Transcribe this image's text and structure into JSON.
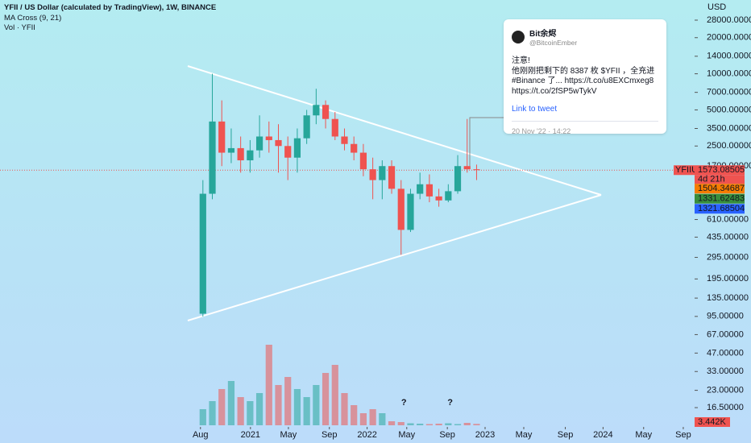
{
  "chart_data": {
    "type": "candlestick",
    "title": "YFII / US Dollar (calculated by TradingView), 1W, BINANCE",
    "indicators": [
      "MA Cross (9, 21)",
      "Vol · YFII"
    ],
    "y_axis_label": "USD",
    "symbol": "YFIIUSD",
    "countdown": "4d 21h",
    "log_scale": true,
    "up_color": "#26a69a",
    "down_color": "#ef5350",
    "categories": [
      null,
      null,
      null,
      null,
      null,
      null,
      null,
      null,
      null,
      null,
      null,
      null,
      null,
      null,
      null,
      null,
      null,
      null,
      null,
      null,
      null,
      null,
      null,
      null,
      null,
      null,
      null,
      null,
      null,
      null
    ],
    "open": [
      100,
      1000,
      4000,
      2200,
      2400,
      1900,
      2300,
      3000,
      2800,
      2500,
      2000,
      2900,
      4500,
      5500,
      4200,
      3000,
      2600,
      2200,
      1600,
      1300,
      1700,
      1100,
      500,
      1000,
      1200,
      950,
      880,
      1050,
      1700,
      1600
    ],
    "high": [
      1300,
      10000,
      6000,
      3500,
      3000,
      2800,
      4500,
      4000,
      3800,
      3000,
      3500,
      5000,
      7500,
      6000,
      4800,
      3500,
      3000,
      2600,
      2000,
      1900,
      1900,
      1300,
      1100,
      1500,
      1450,
      1100,
      1200,
      2100,
      4200,
      1750
    ],
    "low": [
      95,
      900,
      1700,
      1800,
      1500,
      1500,
      2000,
      2200,
      1500,
      1300,
      1500,
      2600,
      3800,
      3500,
      2800,
      2300,
      1900,
      1400,
      900,
      900,
      1000,
      310,
      480,
      900,
      850,
      780,
      850,
      1000,
      1500,
      1300
    ],
    "close": [
      1000,
      4000,
      2200,
      2400,
      1900,
      2300,
      3000,
      2800,
      2500,
      2000,
      2900,
      4500,
      5500,
      4200,
      3000,
      2600,
      2200,
      1600,
      1300,
      1700,
      1100,
      500,
      1000,
      1200,
      950,
      880,
      1050,
      1700,
      1600,
      1573.08505
    ],
    "volume": {
      "values": [
        40,
        60,
        90,
        110,
        70,
        60,
        80,
        200,
        100,
        120,
        90,
        70,
        100,
        130,
        150,
        80,
        50,
        30,
        40,
        30,
        10,
        8,
        5,
        4,
        3,
        4,
        5,
        3,
        6,
        3.442
      ],
      "vlim": [
        0,
        260
      ],
      "last_label": {
        "value": 3.442,
        "label": "3.442K"
      }
    },
    "price_labels": [
      {
        "value": 1504.34687,
        "color": "#f57c00"
      },
      {
        "value": 1331.62483,
        "color": "#388e3c"
      },
      {
        "value": 1321.68504,
        "color": "#2962ff"
      }
    ],
    "annotations": [
      "?",
      "?"
    ],
    "xlim": [
      -21.5,
      52.1
    ],
    "xticks": [
      {
        "value": -0.26,
        "label": "Aug"
      },
      {
        "value": 5.04,
        "label": "2021"
      },
      {
        "value": 9.06,
        "label": "May"
      },
      {
        "value": 13.4,
        "label": "Sep"
      },
      {
        "value": 17.4,
        "label": "2022"
      },
      {
        "value": 21.6,
        "label": "May"
      },
      {
        "value": 25.9,
        "label": "Sep"
      },
      {
        "value": 29.9,
        "label": "2023"
      },
      {
        "value": 34.0,
        "label": "May"
      },
      {
        "value": 38.4,
        "label": "Sep"
      },
      {
        "value": 42.4,
        "label": "2024"
      },
      {
        "value": 46.7,
        "label": "May"
      },
      {
        "value": 50.9,
        "label": "Sep"
      }
    ],
    "ylim": [
      11.4,
      41200
    ],
    "yticks": [
      {
        "value": 28000,
        "label": "28000.00000"
      },
      {
        "value": 20000,
        "label": "20000.00000"
      },
      {
        "value": 14000,
        "label": "14000.00000"
      },
      {
        "value": 10000,
        "label": "10000.00000"
      },
      {
        "value": 7000,
        "label": "7000.00000"
      },
      {
        "value": 5000,
        "label": "5000.00000"
      },
      {
        "value": 3500,
        "label": "3500.00000"
      },
      {
        "value": 2500,
        "label": "2500.00000"
      },
      {
        "value": 1700,
        "label": "1700.00000"
      },
      {
        "value": 610,
        "label": "610.00000"
      },
      {
        "value": 435,
        "label": "435.00000"
      },
      {
        "value": 295,
        "label": "295.00000"
      },
      {
        "value": 195,
        "label": "195.00000"
      },
      {
        "value": 135,
        "label": "135.00000"
      },
      {
        "value": 95,
        "label": "95.00000"
      },
      {
        "value": 67,
        "label": "67.00000"
      },
      {
        "value": 47,
        "label": "47.00000"
      },
      {
        "value": 33,
        "label": "33.00000"
      },
      {
        "value": 23,
        "label": "23.00000"
      },
      {
        "value": 16.5,
        "label": "16.50000"
      }
    ]
  },
  "tweet": {
    "author": "Bit余烬",
    "handle": "@BitcoinEmber",
    "line1": "注意!",
    "line2": "他刚刚把剩下的 8387 枚 $YFII ，全充进 #Binance 了... https://t.co/u8EXCmxeg8 https://t.co/2fSP5wTykV",
    "link": "Link to tweet",
    "date": "20 Nov '22 · 14:22"
  }
}
